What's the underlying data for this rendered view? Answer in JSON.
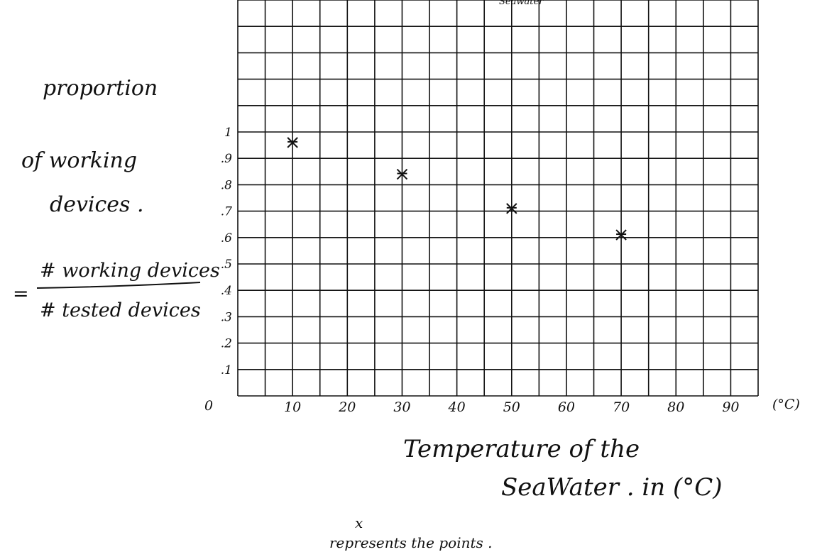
{
  "chart_data": {
    "type": "scatter",
    "title": "",
    "ylabel_lines": [
      "proportion",
      "of working",
      "devices ."
    ],
    "formula": {
      "equals": "=",
      "numerator": "# working devices",
      "denominator": "# tested devices"
    },
    "xlabel_lines": [
      "Temperature of the",
      "SeaWater .  in (°C)"
    ],
    "x_unit": "(°C)",
    "x_origin_label": "0",
    "x_ticks": [
      "10",
      "20",
      "30",
      "40",
      "50",
      "60",
      "70",
      "80",
      "90"
    ],
    "y_ticks": [
      ".1",
      ".2",
      ".3",
      ".4",
      ".5",
      ".6",
      ".7",
      ".8",
      ".9",
      "1"
    ],
    "xlim": [
      0,
      95
    ],
    "ylim": [
      0,
      1.5
    ],
    "grid": true,
    "marker": "x",
    "series": [
      {
        "x": [
          10,
          30,
          50,
          70
        ],
        "y": [
          0.96,
          0.84,
          0.71,
          0.61
        ]
      }
    ],
    "note_lines": [
      "x",
      "represents the points ."
    ],
    "top_scrawl": "Seawater"
  }
}
